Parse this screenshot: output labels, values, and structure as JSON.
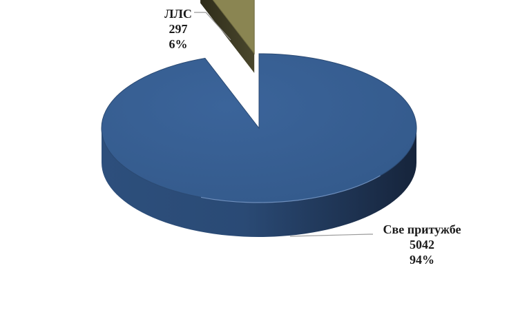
{
  "chart_data": {
    "type": "pie",
    "title": "",
    "three_d": true,
    "exploded": "ЛЛС",
    "legend": "none",
    "slices": [
      {
        "label": "Све притужбе",
        "value": 5042,
        "percent_label": "94%",
        "color": "#375e91"
      },
      {
        "label": "ЛЛС",
        "value": 297,
        "percent_label": "6%",
        "color": "#8a8552"
      }
    ]
  }
}
